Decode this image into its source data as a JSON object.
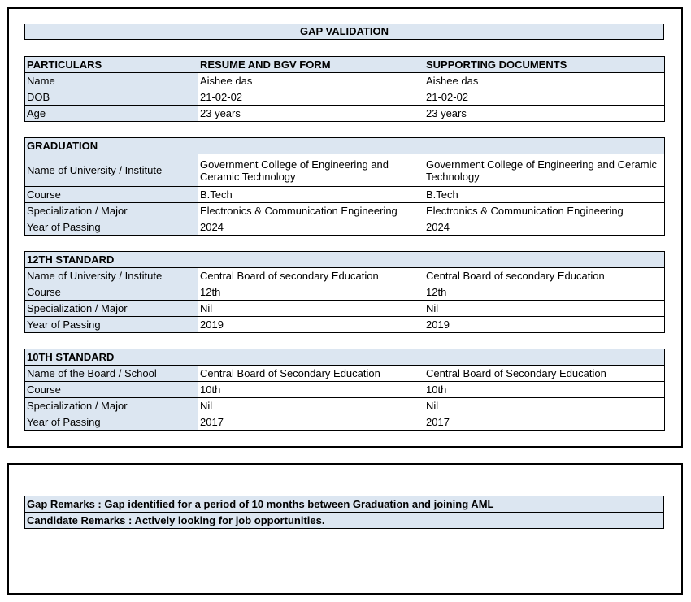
{
  "title": "GAP VALIDATION",
  "personal": {
    "headers": [
      "PARTICULARS",
      "RESUME AND BGV FORM",
      "SUPPORTING DOCUMENTS"
    ],
    "rows": [
      [
        "Name",
        "Aishee das",
        "Aishee das"
      ],
      [
        "DOB",
        "21-02-02",
        "21-02-02"
      ],
      [
        "Age",
        "23 years",
        "23 years"
      ]
    ]
  },
  "graduation": {
    "heading": "GRADUATION",
    "rows": [
      [
        "Name of University / Institute",
        "Government College of Engineering and Ceramic Technology",
        "Government College of Engineering and Ceramic Technology"
      ],
      [
        "Course",
        "B.Tech",
        "B.Tech"
      ],
      [
        "Specialization / Major",
        "Electronics & Communication Engineering",
        "Electronics & Communication Engineering"
      ],
      [
        "Year of Passing",
        "2024",
        "2024"
      ]
    ]
  },
  "twelfth": {
    "heading": "12TH STANDARD",
    "rows": [
      [
        "Name of University / Institute",
        "Central Board of secondary Education",
        "Central Board of secondary Education"
      ],
      [
        "Course",
        "12th",
        "12th"
      ],
      [
        "Specialization / Major",
        "Nil",
        "Nil"
      ],
      [
        "Year of Passing",
        "2019",
        "2019"
      ]
    ]
  },
  "tenth": {
    "heading": "10TH STANDARD",
    "rows": [
      [
        "Name of the Board / School",
        "Central Board of Secondary Education",
        "Central Board of Secondary Education"
      ],
      [
        "Course",
        "10th",
        "10th"
      ],
      [
        "Specialization / Major",
        "Nil",
        "Nil"
      ],
      [
        "Year of Passing",
        "2017",
        "2017"
      ]
    ]
  },
  "remarks": {
    "gap": "Gap Remarks : Gap identified for a period of 10 months  between Graduation and joining AML",
    "candidate": "Candidate Remarks : Actively looking for job opportunities."
  },
  "colors": {
    "header_fill": "#dce6f1",
    "border": "#000000"
  }
}
